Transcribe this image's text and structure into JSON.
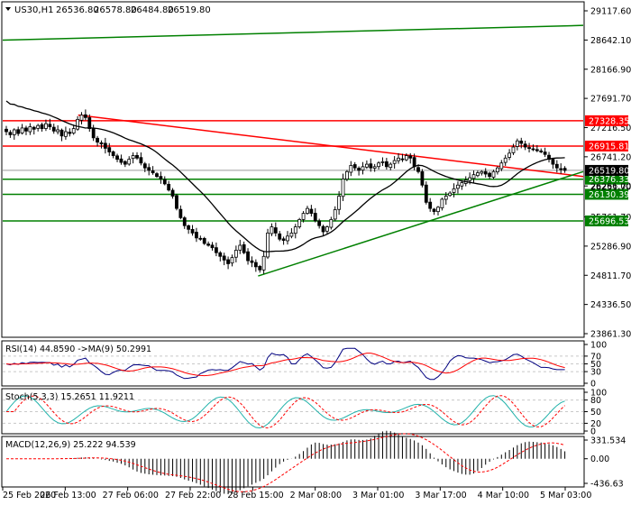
{
  "chart_data": {
    "type": "candlestick",
    "header": {
      "symbol": "US30,H1",
      "values": [
        "26536.80",
        "26578.80",
        "26484.80",
        "26519.80"
      ]
    },
    "price_axis": {
      "ticks": [
        "29117.60",
        "28642.10",
        "28166.90",
        "27691.70",
        "27216.50",
        "26741.20",
        "26266.00",
        "25761.70",
        "25286.90",
        "24811.70",
        "24336.50",
        "23861.30"
      ],
      "ylim": [
        23861.3,
        29117.6
      ]
    },
    "time_axis": {
      "ticks": [
        "25 Feb 2020",
        "26 Feb 13:00",
        "27 Feb 06:00",
        "27 Feb 22:00",
        "28 Feb 15:00",
        "2 Mar 08:00",
        "3 Mar 01:00",
        "3 Mar 17:00",
        "4 Mar 10:00",
        "5 Mar 03:00"
      ]
    },
    "close_series": [
      27150,
      27100,
      27180,
      27120,
      27210,
      27160,
      27230,
      27190,
      27250,
      27200,
      27280,
      27230,
      27160,
      27180,
      27080,
      27150,
      27120,
      27200,
      27350,
      27420,
      27380,
      27200,
      27050,
      26980,
      26950,
      26880,
      26820,
      26760,
      26700,
      26650,
      26620,
      26700,
      26760,
      26720,
      26640,
      26560,
      26520,
      26480,
      26420,
      26380,
      26300,
      26200,
      26100,
      25900,
      25750,
      25620,
      25560,
      25500,
      25420,
      25400,
      25330,
      25300,
      25260,
      25180,
      25120,
      25060,
      25000,
      25100,
      25220,
      25300,
      25180,
      25050,
      25020,
      24950,
      24900,
      25120,
      25500,
      25600,
      25500,
      25400,
      25380,
      25450,
      25500,
      25600,
      25720,
      25820,
      25900,
      25820,
      25700,
      25620,
      25520,
      25600,
      25720,
      25880,
      26100,
      26380,
      26500,
      26600,
      26560,
      26520,
      26580,
      26620,
      26560,
      26580,
      26640,
      26660,
      26580,
      26620,
      26680,
      26720,
      26700,
      26760,
      26720,
      26580,
      26500,
      26280,
      26000,
      25900,
      25850,
      25920,
      26050,
      26100,
      26150,
      26220,
      26280,
      26320,
      26360,
      26400,
      26450,
      26480,
      26500,
      26460,
      26420,
      26500,
      26560,
      26640,
      26720,
      26800,
      26900,
      27000,
      26960,
      26900,
      26880,
      26860,
      26840,
      26820,
      26780,
      26700,
      26620,
      26560,
      26540,
      26520
    ],
    "horizontal_levels": [
      {
        "value": 27328.35,
        "label": "27328.35",
        "color": "#ff0000"
      },
      {
        "value": 26915.81,
        "label": "26915.81",
        "color": "#ff0000"
      },
      {
        "value": 26376.33,
        "label": "26376.33",
        "color": "#008000"
      },
      {
        "value": 26130.39,
        "label": "26130.39",
        "color": "#008000"
      },
      {
        "value": 25696.53,
        "label": "25696.53",
        "color": "#008000"
      }
    ],
    "current_price": {
      "value": 26519.8,
      "label": "26519.80"
    },
    "extra_price_label": "26251.70",
    "trend_lines": [
      {
        "color": "#ff0000",
        "from": [
          0.13,
          27420
        ],
        "to": [
          1.0,
          26420
        ]
      },
      {
        "color": "#008000",
        "from": [
          0.44,
          24800
        ],
        "to": [
          1.0,
          26500
        ]
      },
      {
        "color": "#008000",
        "from": [
          0.0,
          28640
        ],
        "to": [
          1.0,
          28880
        ]
      }
    ],
    "ma_period": 20,
    "rsi": {
      "title": "RSI(14) 44.8590  ->MA(9) 50.2991",
      "ticks": [
        "100",
        "70",
        "50",
        "30",
        "0"
      ]
    },
    "stoch": {
      "title": "Stoch(5,3,3) 15.2651 11.9211",
      "ticks": [
        "100",
        "80",
        "50",
        "20",
        "0"
      ]
    },
    "macd": {
      "title": "MACD(12,26,9) 25.222 94.539",
      "ticks": [
        "331.534",
        "0.00",
        "-436.63"
      ]
    },
    "colors": {
      "bull": "#000000",
      "bear": "#000000",
      "ma": "#000000",
      "rsi": "#000080",
      "rsi_ma": "#ff0000",
      "stoch_main": "#20b2aa",
      "stoch_signal": "#ff0000",
      "macd_hist": "#000000",
      "macd_signal": "#ff0000",
      "grid": "#c8c8c8"
    }
  }
}
